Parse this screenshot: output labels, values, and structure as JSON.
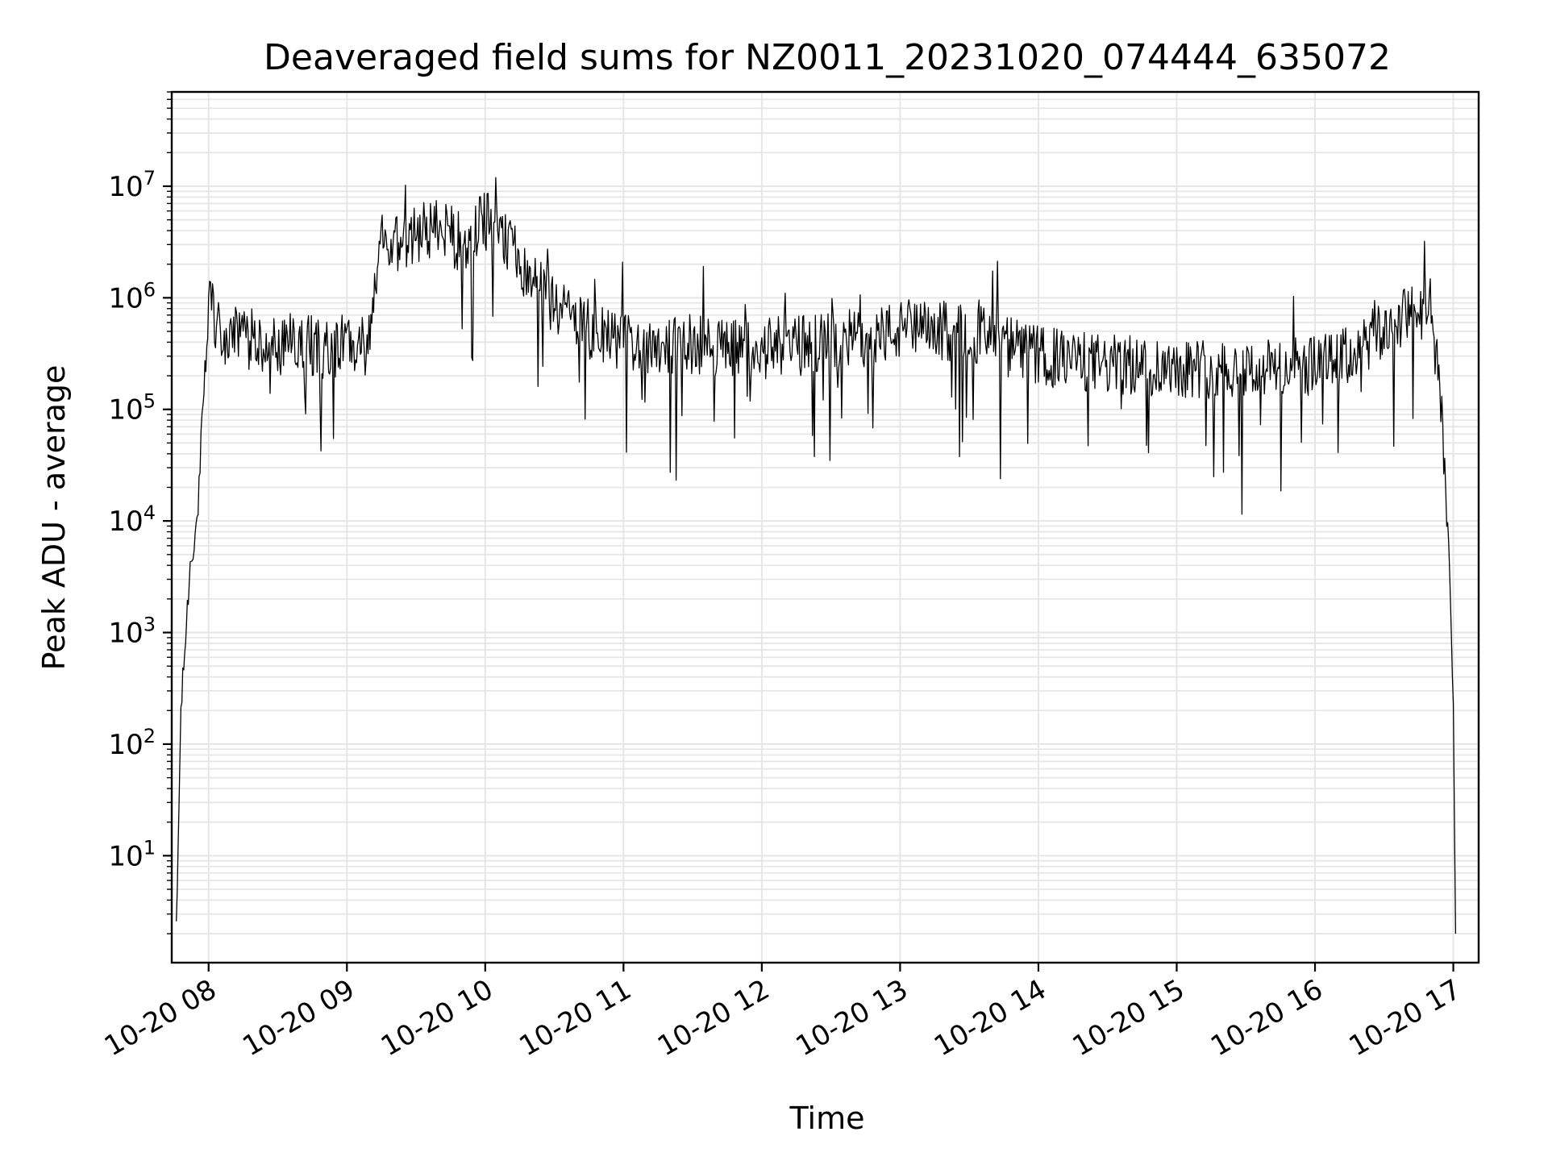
{
  "chart_data": {
    "type": "line",
    "title": "Deaveraged field sums for NZ0011_20231020_074444_635072",
    "xlabel": "Time",
    "ylabel": "Peak ADU - average",
    "yscale": "log",
    "ylim": [
      1.1,
      70000000
    ],
    "xlim": [
      "2023-10-20 07:44",
      "2023-10-20 17:11"
    ],
    "x_tick_labels": [
      "10-20 08",
      "10-20 09",
      "10-20 10",
      "10-20 11",
      "10-20 12",
      "10-20 13",
      "10-20 14",
      "10-20 15",
      "10-20 16",
      "10-20 17"
    ],
    "x_tick_times": [
      "2023-10-20 08:00",
      "2023-10-20 09:00",
      "2023-10-20 10:00",
      "2023-10-20 11:00",
      "2023-10-20 12:00",
      "2023-10-20 13:00",
      "2023-10-20 14:00",
      "2023-10-20 15:00",
      "2023-10-20 16:00",
      "2023-10-20 17:00"
    ],
    "y_tick_mantissa": [
      "10",
      "10",
      "10",
      "10",
      "10",
      "10",
      "10"
    ],
    "y_tick_exponents": [
      "1",
      "2",
      "3",
      "4",
      "5",
      "6",
      "7"
    ],
    "y_tick_values": [
      10,
      100,
      1000,
      10000,
      100000,
      1000000,
      10000000
    ],
    "grid": "on (major and minor)",
    "line_color": "#000000",
    "series": [
      {
        "x": [
          "2023-10-20 07:46",
          "2023-10-20 07:48",
          "2023-10-20 07:50",
          "2023-10-20 07:52",
          "2023-10-20 07:55",
          "2023-10-20 07:58",
          "2023-10-20 08:00",
          "2023-10-20 08:03",
          "2023-10-20 08:06",
          "2023-10-20 08:10",
          "2023-10-20 08:20",
          "2023-10-20 08:30",
          "2023-10-20 08:40",
          "2023-10-20 08:50",
          "2023-10-20 09:00",
          "2023-10-20 09:10",
          "2023-10-20 09:14",
          "2023-10-20 09:20",
          "2023-10-20 09:30",
          "2023-10-20 09:40",
          "2023-10-20 09:50",
          "2023-10-20 10:00",
          "2023-10-20 10:10",
          "2023-10-20 10:20",
          "2023-10-20 10:30",
          "2023-10-20 10:40",
          "2023-10-20 10:50",
          "2023-10-20 11:00",
          "2023-10-20 11:30",
          "2023-10-20 12:00",
          "2023-10-20 12:30",
          "2023-10-20 13:00",
          "2023-10-20 13:30",
          "2023-10-20 14:00",
          "2023-10-20 14:30",
          "2023-10-20 15:00",
          "2023-10-20 15:30",
          "2023-10-20 16:00",
          "2023-10-20 16:15",
          "2023-10-20 16:30",
          "2023-10-20 16:40",
          "2023-10-20 16:50",
          "2023-10-20 16:55",
          "2023-10-20 16:58",
          "2023-10-20 17:00",
          "2023-10-20 17:01"
        ],
        "values": [
          2,
          200,
          900,
          4000,
          10000,
          100000,
          1100000,
          600000,
          400000,
          450000,
          420000,
          380000,
          400000,
          350000,
          380000,
          380000,
          3000000,
          3000000,
          3500000,
          4500000,
          3000000,
          5000000,
          3000000,
          1500000,
          900000,
          600000,
          450000,
          400000,
          380000,
          350000,
          400000,
          500000,
          500000,
          300000,
          250000,
          240000,
          230000,
          240000,
          300000,
          500000,
          700000,
          800000,
          100000,
          5000,
          300,
          2
        ]
      }
    ]
  }
}
